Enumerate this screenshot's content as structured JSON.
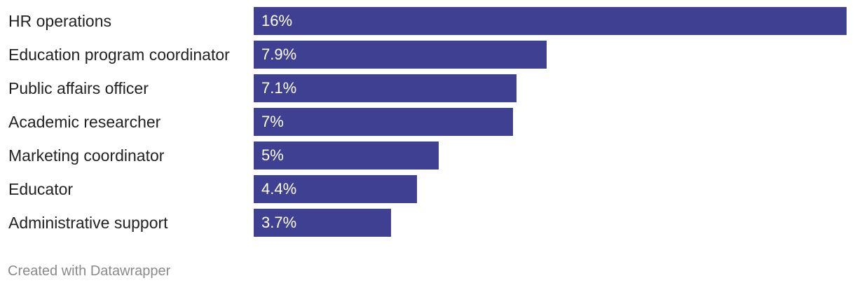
{
  "chart_data": {
    "type": "bar",
    "orientation": "horizontal",
    "categories": [
      "HR operations",
      "Education program coordinator",
      "Public affairs officer",
      "Academic researcher",
      "Marketing coordinator",
      "Educator",
      "Administrative support"
    ],
    "values": [
      16,
      7.9,
      7.1,
      7,
      5,
      4.4,
      3.7
    ],
    "value_labels": [
      "16%",
      "7.9%",
      "7.1%",
      "7%",
      "5%",
      "4.4%",
      "3.7%"
    ],
    "xlim": [
      0,
      16
    ],
    "grid": false,
    "legend": "none",
    "bar_color": "#404092"
  },
  "credit": "Created with Datawrapper"
}
